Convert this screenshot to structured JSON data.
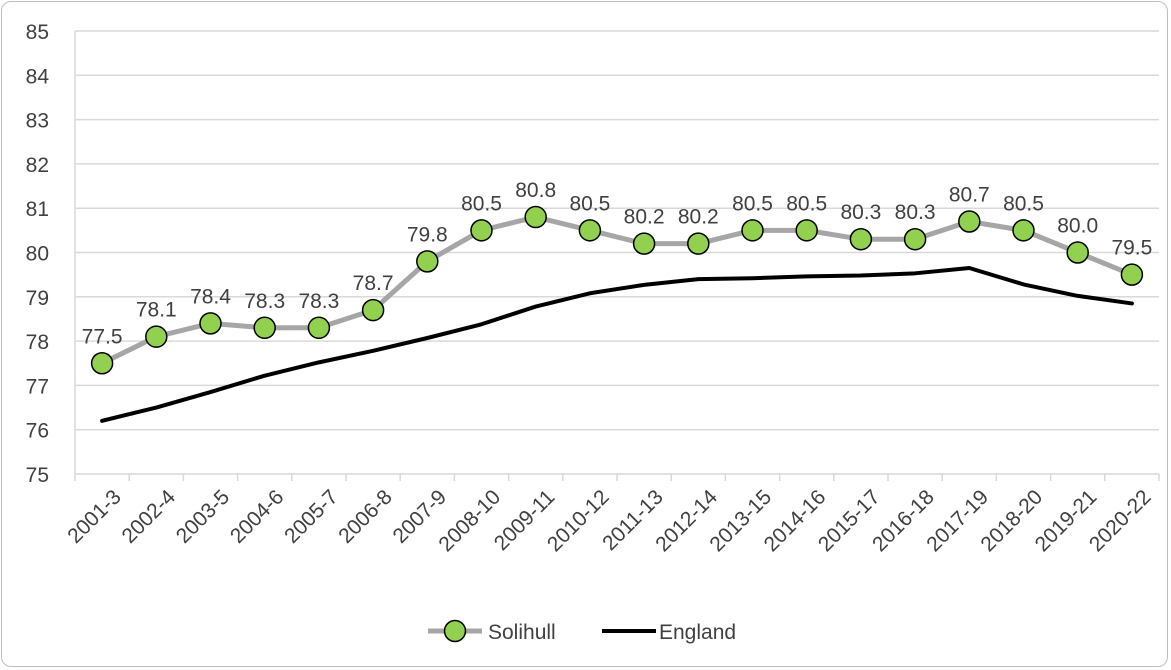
{
  "chart_data": {
    "type": "line",
    "title": "",
    "xlabel": "",
    "ylabel": "",
    "ylim": [
      75,
      85
    ],
    "y_ticks": [
      75,
      76,
      77,
      78,
      79,
      80,
      81,
      82,
      83,
      84,
      85
    ],
    "grid": true,
    "legend_position": "bottom",
    "categories": [
      "2001-3",
      "2002-4",
      "2003-5",
      "2004-6",
      "2005-7",
      "2006-8",
      "2007-9",
      "2008-10",
      "2009-11",
      "2010-12",
      "2011-13",
      "2012-14",
      "2013-15",
      "2014-16",
      "2015-17",
      "2016-18",
      "2017-19",
      "2018-20",
      "2019-21",
      "2020-22"
    ],
    "series": [
      {
        "name": "Solihull",
        "values": [
          77.5,
          78.1,
          78.4,
          78.3,
          78.3,
          78.7,
          79.8,
          80.5,
          80.8,
          80.5,
          80.2,
          80.2,
          80.5,
          80.5,
          80.3,
          80.3,
          80.7,
          80.5,
          80.0,
          79.5
        ],
        "labels": [
          "77.5",
          "78.1",
          "78.4",
          "78.3",
          "78.3",
          "78.7",
          "79.8",
          "80.5",
          "80.8",
          "80.5",
          "80.2",
          "80.2",
          "80.5",
          "80.5",
          "80.3",
          "80.3",
          "80.7",
          "80.5",
          "80.0",
          "79.5"
        ],
        "line_color": "#a6a6a6",
        "marker_color": "#92d050"
      },
      {
        "name": "England",
        "values": [
          76.2,
          76.5,
          76.85,
          77.22,
          77.52,
          77.78,
          78.07,
          78.38,
          78.78,
          79.08,
          79.27,
          79.4,
          79.42,
          79.46,
          79.48,
          79.53,
          79.65,
          79.28,
          79.02,
          78.85
        ],
        "line_color": "#000000"
      }
    ]
  }
}
